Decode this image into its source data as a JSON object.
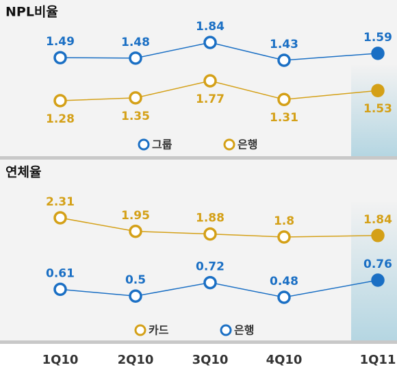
{
  "chart_data": [
    {
      "type": "line",
      "title": "NPL비율",
      "highlight_index": 4,
      "series": [
        {
          "name": "그룹",
          "color": "#1a6fc4",
          "label_position": "above",
          "values": [
            1.49,
            1.48,
            1.84,
            1.43,
            1.59
          ]
        },
        {
          "name": "은행",
          "color": "#d4a017",
          "label_position": "below",
          "values": [
            1.28,
            1.35,
            1.77,
            1.31,
            1.53
          ]
        }
      ]
    },
    {
      "type": "line",
      "title": "연체율",
      "highlight_index": 4,
      "categories": [
        "1Q10",
        "2Q10",
        "3Q10",
        "4Q10",
        "1Q11"
      ],
      "series": [
        {
          "name": "카드",
          "color": "#d4a017",
          "label_position": "above",
          "values": [
            2.31,
            1.95,
            1.88,
            1.8,
            1.84
          ]
        },
        {
          "name": "은행",
          "color": "#1a6fc4",
          "label_position": "above",
          "values": [
            0.61,
            0.5,
            0.72,
            0.48,
            0.76
          ]
        }
      ]
    }
  ]
}
